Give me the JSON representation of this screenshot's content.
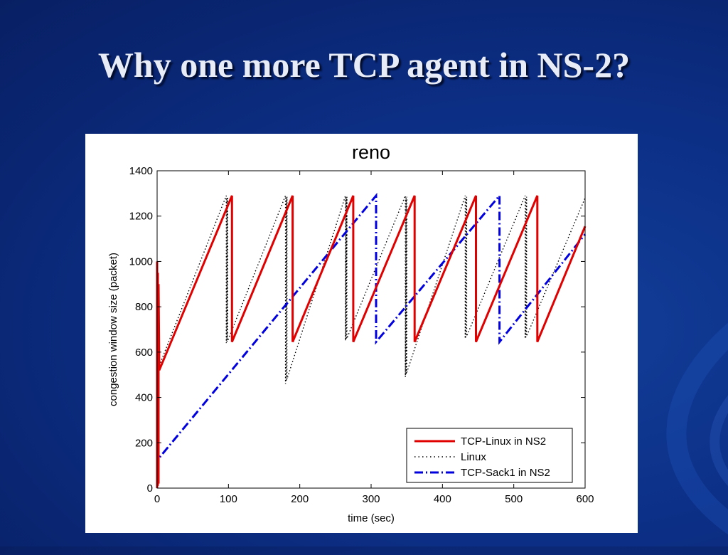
{
  "slide": {
    "title": "Why one more TCP agent in NS-2?"
  },
  "colors": {
    "background": "#0c2f86",
    "title_text": "#e8ecf6",
    "tcp_linux": "#e00000",
    "linux": "#000000",
    "tcp_sack1": "#0000e0"
  },
  "chart_data": {
    "type": "line",
    "title": "reno",
    "xlabel": "time (sec)",
    "ylabel": "congestion window size (packet)",
    "xlim": [
      0,
      600
    ],
    "ylim": [
      0,
      1400
    ],
    "xticks": [
      0,
      100,
      200,
      300,
      400,
      500,
      600
    ],
    "yticks": [
      0,
      200,
      400,
      600,
      800,
      1000,
      1200,
      1400
    ],
    "grid": false,
    "legend_position": "bottom-right",
    "series": [
      {
        "name": "TCP-Linux in NS2",
        "color": "#e00000",
        "style": "solid",
        "x": [
          0,
          0,
          1,
          1,
          2,
          2,
          3,
          105,
          105,
          190,
          190,
          275,
          275,
          361,
          361,
          447,
          447,
          533,
          533,
          600
        ],
        "y": [
          0,
          1000,
          10,
          950,
          20,
          900,
          520,
          1290,
          645,
          1290,
          645,
          1290,
          645,
          1290,
          645,
          1290,
          645,
          1290,
          645,
          1155
        ]
      },
      {
        "name": "Linux",
        "color": "#000000",
        "style": "dotted",
        "x": [
          3,
          97,
          97,
          98,
          98,
          99,
          99,
          180,
          180,
          181,
          181,
          182,
          182,
          264,
          264,
          265,
          265,
          266,
          266,
          348,
          348,
          349,
          349,
          350,
          350,
          432,
          432,
          433,
          433,
          434,
          434,
          516,
          516,
          517,
          517,
          518,
          518,
          600
        ],
        "y": [
          540,
          1290,
          640,
          1280,
          645,
          1285,
          650,
          1290,
          460,
          1280,
          470,
          1285,
          480,
          1290,
          650,
          1280,
          655,
          1285,
          660,
          1290,
          490,
          1280,
          500,
          1285,
          510,
          1290,
          660,
          1280,
          665,
          1285,
          670,
          1290,
          660,
          1280,
          665,
          1285,
          670,
          1280
        ]
      },
      {
        "name": "TCP-Sack1 in NS2",
        "color": "#0000e0",
        "style": "dashdot",
        "x": [
          0,
          1,
          2,
          307,
          307,
          480,
          480,
          600
        ],
        "y": [
          0,
          500,
          130,
          1290,
          645,
          1290,
          645,
          1120
        ]
      }
    ]
  }
}
